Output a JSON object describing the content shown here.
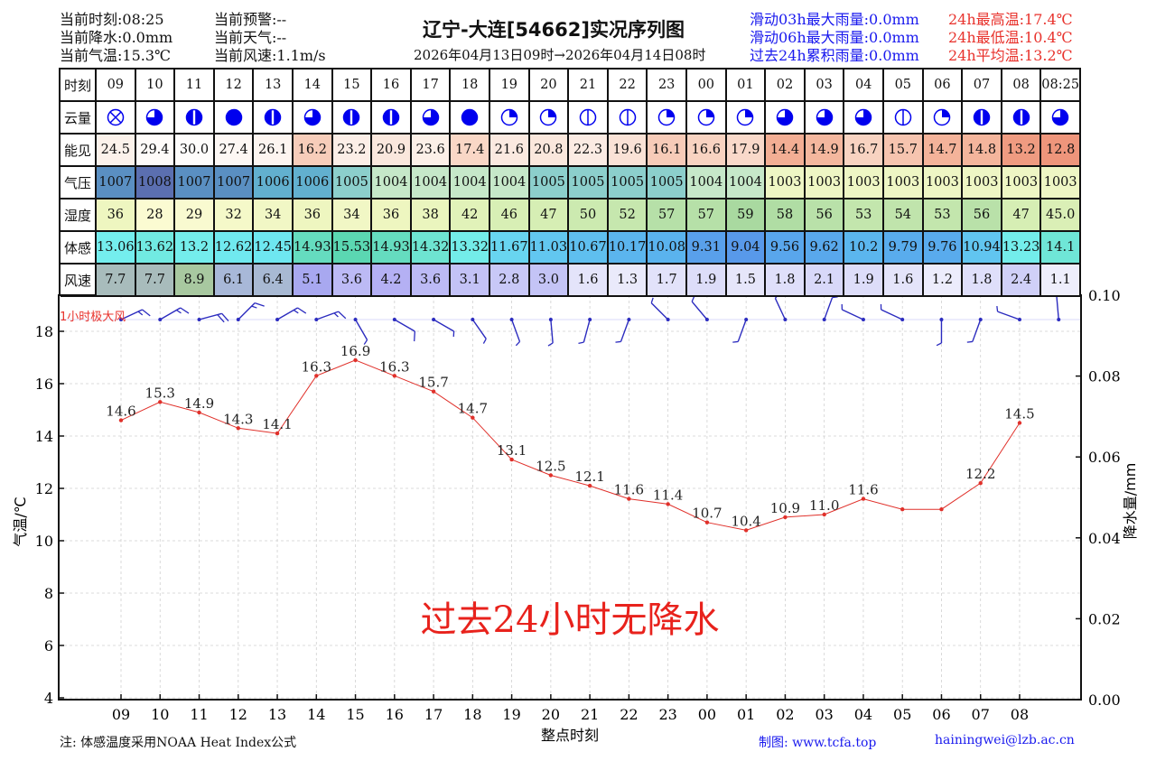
{
  "header": {
    "title": "辽宁-大连[54662]实况序列图",
    "subtitle": "2026年04月13日09时→2026年04月14日08时",
    "current": [
      "当前时刻:08:25",
      "当前降水:0.0mm",
      "当前气温:15.3℃"
    ],
    "status": [
      "当前预警:--",
      "当前天气:--",
      "当前风速:1.1m/s"
    ],
    "rain_stats": [
      "滑动03h最大雨量:0.0mm",
      "滑动06h最大雨量:0.0mm",
      "过去24h累积雨量:0.0mm"
    ],
    "temp_stats": [
      "24h最高温:17.4℃",
      "24h最低温:10.4℃",
      "24h平均温:13.2℃"
    ]
  },
  "colors": {
    "rain_stats": "#1a1aee",
    "temp_stats": "#e8322c",
    "cloud": "#0000ee",
    "wind_barb": "#2b2bbf",
    "temp_line": "#e0302a",
    "no_rain_text": "#e8221c"
  },
  "table": {
    "row_labels": [
      "时刻",
      "云量",
      "能见",
      "气压",
      "湿度",
      "体感",
      "风速"
    ],
    "times": [
      "09",
      "10",
      "11",
      "12",
      "13",
      "14",
      "15",
      "16",
      "17",
      "18",
      "19",
      "20",
      "21",
      "22",
      "23",
      "00",
      "01",
      "02",
      "03",
      "04",
      "05",
      "06",
      "07",
      "08",
      "08:25"
    ],
    "cloud_cover": [
      "x",
      0.75,
      0.875,
      1,
      0.875,
      0.75,
      0.875,
      0.875,
      0.75,
      1,
      0.25,
      0.25,
      0.125,
      0.125,
      0.25,
      0.25,
      0.25,
      0.75,
      0.75,
      0.75,
      0.125,
      0.25,
      0.875,
      0.875,
      0.75
    ],
    "visibility": [
      "24.5",
      "29.4",
      "30.0",
      "27.4",
      "26.1",
      "16.2",
      "23.2",
      "20.9",
      "23.6",
      "17.4",
      "21.6",
      "20.8",
      "22.3",
      "19.6",
      "16.1",
      "16.6",
      "17.9",
      "14.4",
      "14.9",
      "16.7",
      "15.7",
      "14.7",
      "14.8",
      "13.2",
      "12.8"
    ],
    "pressure": [
      "1007",
      "1008",
      "1007",
      "1007",
      "1006",
      "1006",
      "1005",
      "1004",
      "1004",
      "1004",
      "1004",
      "1005",
      "1005",
      "1005",
      "1005",
      "1004",
      "1004",
      "1003",
      "1003",
      "1003",
      "1003",
      "1003",
      "1003",
      "1003",
      "1003"
    ],
    "humidity": [
      "36",
      "28",
      "29",
      "32",
      "34",
      "36",
      "34",
      "36",
      "38",
      "42",
      "46",
      "47",
      "50",
      "52",
      "57",
      "57",
      "59",
      "58",
      "56",
      "53",
      "54",
      "53",
      "56",
      "47",
      "45.0"
    ],
    "feels_like": [
      "13.06",
      "13.62",
      "13.2",
      "12.62",
      "12.45",
      "14.93",
      "15.53",
      "14.93",
      "14.32",
      "13.32",
      "11.67",
      "11.03",
      "10.67",
      "10.17",
      "10.08",
      "9.31",
      "9.04",
      "9.56",
      "9.62",
      "10.2",
      "9.79",
      "9.76",
      "10.94",
      "13.23",
      "14.1"
    ],
    "wind_speed": [
      "7.7",
      "7.7",
      "8.9",
      "6.1",
      "6.4",
      "5.1",
      "3.6",
      "4.2",
      "3.6",
      "3.1",
      "2.8",
      "3.0",
      "1.6",
      "1.3",
      "1.7",
      "1.9",
      "1.5",
      "1.8",
      "2.1",
      "1.9",
      "1.6",
      "1.2",
      "1.8",
      "2.4",
      "1.1"
    ],
    "colormaps": {
      "visibility": [
        [
          12.8,
          "#ee957b"
        ],
        [
          14.5,
          "#f3b096"
        ],
        [
          16.5,
          "#f8d2c0"
        ],
        [
          20,
          "#fae4d9"
        ],
        [
          24,
          "#fcf1ea"
        ],
        [
          30,
          "#fefcfb"
        ]
      ],
      "pressure": [
        [
          1003,
          "#eef6c4"
        ],
        [
          1004,
          "#c6e8c9"
        ],
        [
          1005,
          "#8ccfcc"
        ],
        [
          1006,
          "#62b0cf"
        ],
        [
          1007,
          "#5a8fc2"
        ],
        [
          1008,
          "#5b6fb0"
        ]
      ],
      "humidity": [
        [
          28,
          "#fbfbd2"
        ],
        [
          36,
          "#eef6c0"
        ],
        [
          47,
          "#d6eeb4"
        ],
        [
          57,
          "#b6e0a8"
        ],
        [
          59,
          "#a9d9a0"
        ]
      ],
      "feels_like": [
        [
          9.0,
          "#5898ea"
        ],
        [
          10.1,
          "#5ab4ee"
        ],
        [
          11.0,
          "#62c6f0"
        ],
        [
          12.4,
          "#6ee6f0"
        ],
        [
          13.1,
          "#74eeee"
        ],
        [
          14.3,
          "#6ee4d2"
        ],
        [
          14.9,
          "#66dcc0"
        ],
        [
          15.6,
          "#5ad6b0"
        ]
      ],
      "wind_speed": [
        [
          1.1,
          "#eeeefc"
        ],
        [
          1.6,
          "#e4e4fa"
        ],
        [
          2.4,
          "#d0d0f8"
        ],
        [
          3.0,
          "#c4c4f6"
        ],
        [
          4.2,
          "#b4b0f4"
        ],
        [
          5.1,
          "#a8a8f0"
        ],
        [
          6.1,
          "#a8b8d8"
        ],
        [
          7.7,
          "#a8bcbc"
        ],
        [
          8.9,
          "#a8c8a0"
        ]
      ]
    }
  },
  "chart_data": {
    "type": "line",
    "x": [
      "09",
      "10",
      "11",
      "12",
      "13",
      "14",
      "15",
      "16",
      "17",
      "18",
      "19",
      "20",
      "21",
      "22",
      "23",
      "00",
      "01",
      "02",
      "03",
      "04",
      "05",
      "06",
      "07",
      "08"
    ],
    "series": [
      {
        "values": [
          14.6,
          15.3,
          14.9,
          14.3,
          14.1,
          16.3,
          16.9,
          16.3,
          15.7,
          14.7,
          13.1,
          12.5,
          12.1,
          11.6,
          11.4,
          10.7,
          10.4,
          10.9,
          11.0,
          11.6,
          11.2,
          11.2,
          12.2,
          14.5
        ]
      }
    ],
    "data_labels": [
      "14.6",
      "15.3",
      "14.9",
      "14.3",
      "14.1",
      "16.3",
      "16.9",
      "16.3",
      "15.7",
      "14.7",
      "13.1",
      "12.5",
      "12.1",
      "11.6",
      "11.4",
      "10.7",
      "10.4",
      "10.9",
      "11.0",
      "11.6",
      null,
      null,
      "12.2",
      "14.5"
    ],
    "xlabel": "整点时刻",
    "ylabel": "气温/℃",
    "y2label": "降水量/mm",
    "ylim": [
      4,
      19.4
    ],
    "yticks": [
      "4",
      "6",
      "8",
      "10",
      "12",
      "14",
      "16",
      "18"
    ],
    "y2lim": [
      0,
      0.1
    ],
    "y2ticks": [
      "0.00",
      "0.02",
      "0.04",
      "0.06",
      "0.08",
      "0.10"
    ],
    "grid": true,
    "wind_label": "1小时极大风",
    "wind_gust": {
      "direction_deg": [
        65,
        60,
        75,
        45,
        60,
        70,
        150,
        120,
        120,
        145,
        160,
        175,
        195,
        200,
        315,
        320,
        200,
        335,
        20,
        295,
        295,
        180,
        200,
        290,
        355
      ],
      "speed": [
        7.7,
        7.7,
        8.9,
        6.1,
        6.4,
        5.1,
        3.6,
        4.2,
        3.6,
        3.1,
        2.8,
        3.0,
        1.6,
        1.3,
        1.7,
        1.9,
        1.5,
        1.8,
        2.1,
        1.9,
        1.6,
        1.2,
        1.8,
        2.4,
        1.1
      ]
    },
    "annotation": "过去24小时无降水"
  },
  "footer": {
    "note": "注: 体感温度采用NOAA Heat Index公式",
    "maker": "制图: www.tcfa.top",
    "email": "hainingwei@lzb.ac.cn"
  }
}
